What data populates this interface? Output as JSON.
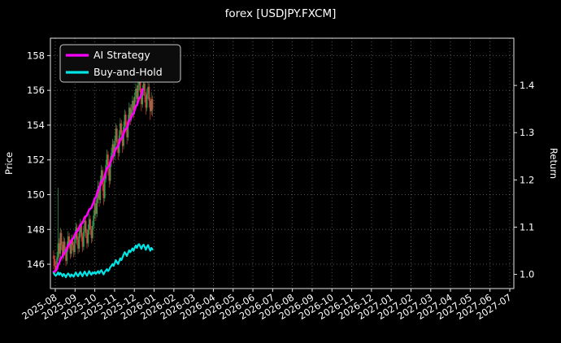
{
  "colors": {
    "background": "#000000",
    "text": "#ffffff",
    "candle_up": "#35a04c",
    "candle_down": "#dd4040",
    "grid": "#ffffff",
    "legend_bg": "#0c0c0c",
    "legend_border": "#c8c8c8"
  },
  "chart_data": {
    "type": "candlestick",
    "title": "forex [USDJPY.FXCM]",
    "ylabel_left": "Price",
    "ylabel_right": "Return",
    "xlabel": "",
    "grid": "dotted",
    "legend_position": "upper-left",
    "price_ylim": [
      144.6,
      159.0
    ],
    "return_ylim": [
      0.97,
      1.5
    ],
    "price_ticks": [
      146,
      148,
      150,
      152,
      154,
      156,
      158
    ],
    "return_ticks": [
      "1.0",
      "1.1",
      "1.2",
      "1.3",
      "1.4"
    ],
    "x_months": [
      "2025-08",
      "2025-09",
      "2025-10",
      "2025-11",
      "2025-12",
      "2026-01",
      "2026-02",
      "2026-03",
      "2026-04",
      "2026-05",
      "2026-06",
      "2026-07",
      "2026-08",
      "2026-09",
      "2026-10",
      "2026-11",
      "2026-12",
      "2027-01",
      "2027-02",
      "2027-03",
      "2027-04",
      "2027-05",
      "2027-06",
      "2027-07"
    ],
    "candles_span_months": 5.0,
    "candles": [
      [
        146.5,
        146.8,
        145.7,
        146.3
      ],
      [
        146.3,
        146.5,
        145.6,
        145.9
      ],
      [
        145.9,
        146.2,
        145.5,
        145.7
      ],
      [
        145.7,
        146.7,
        145.6,
        146.4
      ],
      [
        146.4,
        150.4,
        146.2,
        147.2
      ],
      [
        147.2,
        147.5,
        146.3,
        146.6
      ],
      [
        146.6,
        148.1,
        146.4,
        147.8
      ],
      [
        147.8,
        148.0,
        146.8,
        147.1
      ],
      [
        147.1,
        147.3,
        146.2,
        146.5
      ],
      [
        146.5,
        147.6,
        146.3,
        147.3
      ],
      [
        147.3,
        147.5,
        146.5,
        146.8
      ],
      [
        146.8,
        147.0,
        145.9,
        146.2
      ],
      [
        146.2,
        147.3,
        146.0,
        147.0
      ],
      [
        147.0,
        147.9,
        146.7,
        147.6
      ],
      [
        147.6,
        147.8,
        146.9,
        147.2
      ],
      [
        147.2,
        147.4,
        146.3,
        146.6
      ],
      [
        146.6,
        147.7,
        146.4,
        147.4
      ],
      [
        147.4,
        147.7,
        146.8,
        147.1
      ],
      [
        147.1,
        147.3,
        146.4,
        146.7
      ],
      [
        146.7,
        147.8,
        146.5,
        147.5
      ],
      [
        147.5,
        148.4,
        147.2,
        148.1
      ],
      [
        148.1,
        148.3,
        147.1,
        147.4
      ],
      [
        147.4,
        147.6,
        146.6,
        146.9
      ],
      [
        146.9,
        148.1,
        146.7,
        147.8
      ],
      [
        147.8,
        148.6,
        147.5,
        148.3
      ],
      [
        148.3,
        148.5,
        147.3,
        147.6
      ],
      [
        147.6,
        147.8,
        146.7,
        147.0
      ],
      [
        147.0,
        148.2,
        146.8,
        147.9
      ],
      [
        147.9,
        148.8,
        147.6,
        148.5
      ],
      [
        148.5,
        148.7,
        147.5,
        147.8
      ],
      [
        147.8,
        148.0,
        146.9,
        147.2
      ],
      [
        147.2,
        148.3,
        147.0,
        148.0
      ],
      [
        148.0,
        148.9,
        147.7,
        148.6
      ],
      [
        148.6,
        148.8,
        147.7,
        148.0
      ],
      [
        148.0,
        148.2,
        147.2,
        147.5
      ],
      [
        147.5,
        148.5,
        147.3,
        148.2
      ],
      [
        148.2,
        149.1,
        148.0,
        148.8
      ],
      [
        148.8,
        149.8,
        148.6,
        149.5
      ],
      [
        149.5,
        149.7,
        148.5,
        148.9
      ],
      [
        148.9,
        150.1,
        148.7,
        149.8
      ],
      [
        149.8,
        150.8,
        149.5,
        150.5
      ],
      [
        150.5,
        150.7,
        149.3,
        149.7
      ],
      [
        149.7,
        151.1,
        149.5,
        150.8
      ],
      [
        150.8,
        151.7,
        150.5,
        151.4
      ],
      [
        151.4,
        151.6,
        150.2,
        150.6
      ],
      [
        150.6,
        150.8,
        149.4,
        149.8
      ],
      [
        149.8,
        151.2,
        149.6,
        150.9
      ],
      [
        150.9,
        152.0,
        150.7,
        151.7
      ],
      [
        151.7,
        152.6,
        151.4,
        152.3
      ],
      [
        152.3,
        152.5,
        151.1,
        151.5
      ],
      [
        151.5,
        151.7,
        150.4,
        150.8
      ],
      [
        150.8,
        152.2,
        150.6,
        151.9
      ],
      [
        151.9,
        152.7,
        151.6,
        152.4
      ],
      [
        152.4,
        153.2,
        152.1,
        152.9
      ],
      [
        152.9,
        153.1,
        151.8,
        152.2
      ],
      [
        152.2,
        153.4,
        152.0,
        153.1
      ],
      [
        153.1,
        154.1,
        152.8,
        153.8
      ],
      [
        153.8,
        154.0,
        152.6,
        153.0
      ],
      [
        153.0,
        153.2,
        152.0,
        152.4
      ],
      [
        152.4,
        153.7,
        152.2,
        153.4
      ],
      [
        153.4,
        154.4,
        153.1,
        154.1
      ],
      [
        154.1,
        154.3,
        153.1,
        153.5
      ],
      [
        153.5,
        153.7,
        152.4,
        152.8
      ],
      [
        152.8,
        154.2,
        152.6,
        153.9
      ],
      [
        153.9,
        154.9,
        153.6,
        154.6
      ],
      [
        154.6,
        154.8,
        153.6,
        154.0
      ],
      [
        154.0,
        154.2,
        152.9,
        153.3
      ],
      [
        153.3,
        154.6,
        153.1,
        154.3
      ],
      [
        154.3,
        155.3,
        154.0,
        155.0
      ],
      [
        155.0,
        155.2,
        154.0,
        154.4
      ],
      [
        154.4,
        155.2,
        154.2,
        154.9
      ],
      [
        154.9,
        155.7,
        154.6,
        155.4
      ],
      [
        155.4,
        155.6,
        154.4,
        154.8
      ],
      [
        154.8,
        155.9,
        154.6,
        155.6
      ],
      [
        155.6,
        156.4,
        155.3,
        156.1
      ],
      [
        156.1,
        156.3,
        155.1,
        155.5
      ],
      [
        155.5,
        156.6,
        155.3,
        156.3
      ],
      [
        156.3,
        156.9,
        156.0,
        156.6
      ],
      [
        156.6,
        156.8,
        155.5,
        155.9
      ],
      [
        155.9,
        156.1,
        154.8,
        155.2
      ],
      [
        155.2,
        156.3,
        155.0,
        156.0
      ],
      [
        156.0,
        156.7,
        155.7,
        156.4
      ],
      [
        156.4,
        156.6,
        155.3,
        155.7
      ],
      [
        155.7,
        155.9,
        154.6,
        155.0
      ],
      [
        155.0,
        156.1,
        154.8,
        155.8
      ],
      [
        155.8,
        156.5,
        155.5,
        156.2
      ],
      [
        156.2,
        156.4,
        155.0,
        155.4
      ],
      [
        155.4,
        155.6,
        154.3,
        154.8
      ],
      [
        154.8,
        155.9,
        154.6,
        155.5
      ],
      [
        155.5,
        155.7,
        154.5,
        154.9
      ]
    ],
    "series": [
      {
        "name": "AI Strategy",
        "axis": "return",
        "color": "#ff00ff",
        "values": [
          1.005,
          1.007,
          1.008,
          1.012,
          1.02,
          1.024,
          1.032,
          1.036,
          1.038,
          1.044,
          1.047,
          1.049,
          1.055,
          1.061,
          1.064,
          1.066,
          1.072,
          1.075,
          1.077,
          1.083,
          1.089,
          1.091,
          1.093,
          1.099,
          1.105,
          1.107,
          1.109,
          1.115,
          1.121,
          1.123,
          1.125,
          1.131,
          1.137,
          1.139,
          1.141,
          1.147,
          1.153,
          1.161,
          1.163,
          1.171,
          1.179,
          1.181,
          1.189,
          1.197,
          1.199,
          1.201,
          1.209,
          1.217,
          1.225,
          1.227,
          1.229,
          1.237,
          1.243,
          1.25,
          1.252,
          1.259,
          1.267,
          1.269,
          1.271,
          1.278,
          1.286,
          1.288,
          1.29,
          1.298,
          1.306,
          1.308,
          1.31,
          1.318,
          1.326,
          1.328,
          1.333,
          1.339,
          1.341,
          1.348,
          1.356,
          1.358,
          1.366,
          1.373,
          1.375,
          1.38,
          1.392,
          null,
          null,
          null,
          null,
          null,
          null,
          null,
          null,
          null
        ]
      },
      {
        "name": "Buy-and-Hold",
        "axis": "return",
        "color": "#00e5e5",
        "values": [
          1.003,
          0.999,
          0.997,
          1.0,
          1.004,
          0.999,
          1.003,
          1.0,
          0.996,
          1.001,
          0.998,
          0.994,
          0.999,
          1.002,
          0.999,
          0.995,
          1.0,
          0.998,
          0.995,
          1.0,
          1.004,
          0.999,
          0.996,
          1.001,
          1.005,
          1.0,
          0.996,
          1.002,
          1.006,
          1.001,
          0.997,
          1.002,
          1.007,
          1.002,
          0.999,
          1.004,
          1.002,
          1.005,
          1.001,
          1.004,
          1.007,
          1.002,
          1.006,
          1.009,
          1.004,
          1.0,
          1.005,
          1.008,
          1.011,
          1.007,
          1.01,
          1.015,
          1.018,
          1.022,
          1.018,
          1.024,
          1.03,
          1.026,
          1.022,
          1.028,
          1.034,
          1.03,
          1.036,
          1.042,
          1.047,
          1.043,
          1.039,
          1.045,
          1.051,
          1.047,
          1.051,
          1.055,
          1.05,
          1.056,
          1.061,
          1.056,
          1.062,
          1.064,
          1.059,
          1.054,
          1.06,
          1.063,
          1.058,
          1.052,
          1.058,
          1.062,
          1.056,
          1.05,
          1.056,
          1.053
        ]
      }
    ]
  }
}
